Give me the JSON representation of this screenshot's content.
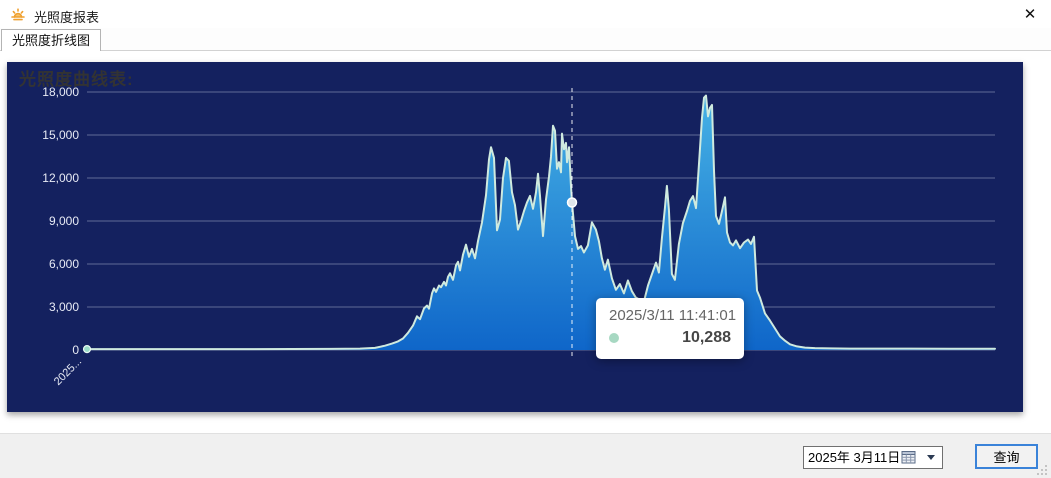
{
  "window": {
    "title": "光照度报表",
    "close_glyph": "✕"
  },
  "tabs": {
    "active_label": "光照度折线图"
  },
  "chart": {
    "title": "光照度曲线表:"
  },
  "tooltip": {
    "datetime": "2025/3/11 11:41:01",
    "value": "10,288"
  },
  "footer": {
    "date_value": "2025年 3月11日",
    "query_label": "查询"
  },
  "chart_data": {
    "type": "area",
    "title": "光照度曲线表:",
    "xlabel": "",
    "ylabel": "",
    "ylim": [
      0,
      18000
    ],
    "grid": true,
    "legend": "none",
    "y_ticks": [
      {
        "value": 0,
        "label": "0"
      },
      {
        "value": 3000,
        "label": "3,000"
      },
      {
        "value": 6000,
        "label": "6,000"
      },
      {
        "value": 9000,
        "label": "9,000"
      },
      {
        "value": 12000,
        "label": "12,000"
      },
      {
        "value": 15000,
        "label": "15,000"
      },
      {
        "value": 18000,
        "label": "18,000"
      }
    ],
    "x_first_tick_label": "2025...",
    "marker": {
      "x": 0.5341,
      "value": 10288,
      "datetime": "2025/3/11 11:41:01",
      "display": "10,288"
    },
    "colors": {
      "background": "#14215f",
      "grid": "rgba(210,218,235,0.4)",
      "axis_label": "#e8ebf5",
      "line": "#cfeadf",
      "area_top": "#46b2e5",
      "area_bottom": "#0f66c9",
      "start_dot": "#9adcc8",
      "marker_dot": "#dfe5ea",
      "tooltip_dot": "#a7d8c2",
      "title": "#333333"
    },
    "series": [
      {
        "name": "光照度",
        "points": [
          [
            0.0,
            60
          ],
          [
            0.0694,
            60
          ],
          [
            0.1795,
            60
          ],
          [
            0.2676,
            80
          ],
          [
            0.3007,
            100
          ],
          [
            0.3172,
            150
          ],
          [
            0.3282,
            300
          ],
          [
            0.3359,
            450
          ],
          [
            0.3425,
            600
          ],
          [
            0.348,
            800
          ],
          [
            0.3535,
            1200
          ],
          [
            0.359,
            1700
          ],
          [
            0.3634,
            2350
          ],
          [
            0.3667,
            2150
          ],
          [
            0.3711,
            2900
          ],
          [
            0.3744,
            3100
          ],
          [
            0.3767,
            2880
          ],
          [
            0.38,
            3950
          ],
          [
            0.3822,
            4300
          ],
          [
            0.3844,
            4050
          ],
          [
            0.3877,
            4500
          ],
          [
            0.3899,
            4380
          ],
          [
            0.3932,
            4750
          ],
          [
            0.3954,
            4500
          ],
          [
            0.3976,
            5100
          ],
          [
            0.3998,
            5350
          ],
          [
            0.4031,
            4900
          ],
          [
            0.4064,
            5900
          ],
          [
            0.4086,
            6150
          ],
          [
            0.4108,
            5550
          ],
          [
            0.4141,
            6650
          ],
          [
            0.4174,
            7350
          ],
          [
            0.4207,
            6500
          ],
          [
            0.424,
            7050
          ],
          [
            0.4273,
            6400
          ],
          [
            0.4306,
            7600
          ],
          [
            0.435,
            8900
          ],
          [
            0.4394,
            10800
          ],
          [
            0.4427,
            13300
          ],
          [
            0.4449,
            14150
          ],
          [
            0.4482,
            13400
          ],
          [
            0.4515,
            8350
          ],
          [
            0.4548,
            9100
          ],
          [
            0.4581,
            12000
          ],
          [
            0.4614,
            13400
          ],
          [
            0.4647,
            13200
          ],
          [
            0.4681,
            11000
          ],
          [
            0.4714,
            10100
          ],
          [
            0.4747,
            8400
          ],
          [
            0.478,
            9000
          ],
          [
            0.4813,
            9700
          ],
          [
            0.4846,
            10300
          ],
          [
            0.4879,
            10750
          ],
          [
            0.4912,
            9850
          ],
          [
            0.4945,
            11000
          ],
          [
            0.4967,
            12300
          ],
          [
            0.4989,
            10750
          ],
          [
            0.5022,
            7950
          ],
          [
            0.5055,
            10500
          ],
          [
            0.5088,
            12100
          ],
          [
            0.511,
            13500
          ],
          [
            0.5132,
            15650
          ],
          [
            0.5154,
            15300
          ],
          [
            0.5176,
            12650
          ],
          [
            0.5198,
            13100
          ],
          [
            0.522,
            12400
          ],
          [
            0.5231,
            15100
          ],
          [
            0.5253,
            14000
          ],
          [
            0.5275,
            14450
          ],
          [
            0.5286,
            13100
          ],
          [
            0.5308,
            14150
          ],
          [
            0.533,
            11400
          ],
          [
            0.5341,
            10288
          ],
          [
            0.5374,
            7950
          ],
          [
            0.5407,
            7050
          ],
          [
            0.544,
            7250
          ],
          [
            0.5473,
            6800
          ],
          [
            0.5517,
            7300
          ],
          [
            0.5561,
            8900
          ],
          [
            0.5605,
            8400
          ],
          [
            0.5638,
            7600
          ],
          [
            0.5671,
            6400
          ],
          [
            0.5704,
            5600
          ],
          [
            0.5737,
            6300
          ],
          [
            0.5781,
            5000
          ],
          [
            0.5825,
            4200
          ],
          [
            0.5869,
            4600
          ],
          [
            0.5913,
            3950
          ],
          [
            0.5957,
            4850
          ],
          [
            0.6001,
            4100
          ],
          [
            0.6045,
            3650
          ],
          [
            0.609,
            3500
          ],
          [
            0.6134,
            3400
          ],
          [
            0.6178,
            4500
          ],
          [
            0.6222,
            5300
          ],
          [
            0.6266,
            6100
          ],
          [
            0.6299,
            5400
          ],
          [
            0.6332,
            7800
          ],
          [
            0.6365,
            9900
          ],
          [
            0.6387,
            11450
          ],
          [
            0.6409,
            9800
          ],
          [
            0.6442,
            5300
          ],
          [
            0.6475,
            4900
          ],
          [
            0.6519,
            7400
          ],
          [
            0.6563,
            8850
          ],
          [
            0.6608,
            9700
          ],
          [
            0.6641,
            10400
          ],
          [
            0.6674,
            10740
          ],
          [
            0.6707,
            9900
          ],
          [
            0.674,
            13000
          ],
          [
            0.6773,
            16200
          ],
          [
            0.6795,
            17600
          ],
          [
            0.6817,
            17750
          ],
          [
            0.6839,
            16300
          ],
          [
            0.6861,
            16900
          ],
          [
            0.6883,
            17100
          ],
          [
            0.6905,
            12500
          ],
          [
            0.6927,
            9350
          ],
          [
            0.696,
            8800
          ],
          [
            0.6993,
            9700
          ],
          [
            0.7026,
            10650
          ],
          [
            0.7048,
            8200
          ],
          [
            0.7081,
            7500
          ],
          [
            0.7115,
            7300
          ],
          [
            0.7148,
            7650
          ],
          [
            0.7192,
            7100
          ],
          [
            0.7236,
            7500
          ],
          [
            0.728,
            7700
          ],
          [
            0.7313,
            7400
          ],
          [
            0.7346,
            7900
          ],
          [
            0.7379,
            4150
          ],
          [
            0.7412,
            3650
          ],
          [
            0.7467,
            2550
          ],
          [
            0.7522,
            2050
          ],
          [
            0.7577,
            1500
          ],
          [
            0.7632,
            950
          ],
          [
            0.7687,
            650
          ],
          [
            0.7742,
            400
          ],
          [
            0.7819,
            250
          ],
          [
            0.7907,
            170
          ],
          [
            0.8018,
            130
          ],
          [
            0.8183,
            110
          ],
          [
            0.8403,
            100
          ],
          [
            0.8733,
            95
          ],
          [
            0.9064,
            95
          ],
          [
            0.9504,
            90
          ],
          [
            1.0,
            90
          ]
        ]
      }
    ]
  }
}
